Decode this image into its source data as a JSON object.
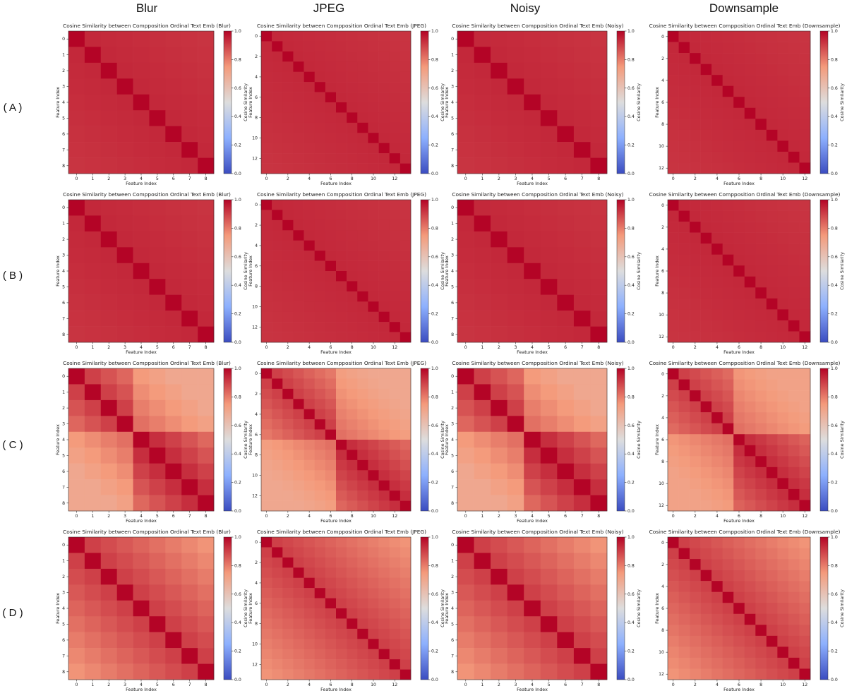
{
  "figure": {
    "column_headers": [
      "Blur",
      "JPEG",
      "Noisy",
      "Downsample"
    ],
    "row_labels": [
      "( A )",
      "( B )",
      "( C )",
      "( D )"
    ]
  },
  "colormap": {
    "name": "coolwarm",
    "low": "#3b4cc0",
    "mid": "#dddddd",
    "high": "#b40426"
  },
  "chart_data": [
    {
      "type": "heatmap",
      "row": "A",
      "column": "Blur",
      "title": "Cosine Similarity between Compposition Ordinal Text Emb (Blur)",
      "xlabel": "Feature Index",
      "ylabel": "Feature Index",
      "colorbar_label": "Cosine Similarity",
      "clim": [
        0,
        1
      ],
      "colorbar_ticks": [
        "0.0",
        "0.2",
        "0.4",
        "0.6",
        "0.8",
        "1.0"
      ],
      "n": 9,
      "x_ticks": [
        "0",
        "1",
        "2",
        "3",
        "4",
        "5",
        "6",
        "7",
        "8"
      ],
      "y_ticks": [
        "0",
        "1",
        "2",
        "3",
        "4",
        "5",
        "6",
        "7",
        "8"
      ],
      "diagonal": 1.0,
      "off_diagonal": {
        "near": 0.94,
        "far": 0.92,
        "decay": "linear"
      }
    },
    {
      "type": "heatmap",
      "row": "A",
      "column": "JPEG",
      "title": "Cosine Similarity between Compposition Ordinal Text Emb (JPEG)",
      "xlabel": "Feature Index",
      "ylabel": "Feature Index",
      "colorbar_label": "Cosine Similarity",
      "clim": [
        0,
        1
      ],
      "colorbar_ticks": [
        "0.0",
        "0.2",
        "0.4",
        "0.6",
        "0.8",
        "1.0"
      ],
      "n": 14,
      "x_ticks": [
        "0",
        "2",
        "4",
        "6",
        "8",
        "10",
        "12"
      ],
      "y_ticks": [
        "0",
        "2",
        "4",
        "6",
        "8",
        "10",
        "12"
      ],
      "diagonal": 1.0,
      "off_diagonal": {
        "near": 0.94,
        "far": 0.92,
        "decay": "linear"
      }
    },
    {
      "type": "heatmap",
      "row": "A",
      "column": "Noisy",
      "title": "Cosine Similarity between Compposition Ordinal Text Emb (Noisy)",
      "xlabel": "Feature Index",
      "ylabel": "Feature Index",
      "colorbar_label": "Cosine Similarity",
      "clim": [
        0,
        1
      ],
      "colorbar_ticks": [
        "0.0",
        "0.2",
        "0.4",
        "0.6",
        "0.8",
        "1.0"
      ],
      "n": 9,
      "x_ticks": [
        "0",
        "1",
        "2",
        "3",
        "4",
        "5",
        "6",
        "7",
        "8"
      ],
      "y_ticks": [
        "0",
        "1",
        "2",
        "3",
        "4",
        "5",
        "6",
        "7",
        "8"
      ],
      "diagonal": 1.0,
      "off_diagonal": {
        "near": 0.94,
        "far": 0.92,
        "decay": "linear"
      }
    },
    {
      "type": "heatmap",
      "row": "A",
      "column": "Downsample",
      "title": "Cosine Similarity between Compposition Ordinal Text Emb (Downsample)",
      "xlabel": "Feature Index",
      "ylabel": "Feature Index",
      "colorbar_label": "Cosine Similarity",
      "clim": [
        0,
        1
      ],
      "colorbar_ticks": [
        "0.0",
        "0.2",
        "0.4",
        "0.6",
        "0.8",
        "1.0"
      ],
      "n": 13,
      "x_ticks": [
        "0",
        "2",
        "4",
        "6",
        "8",
        "10",
        "12"
      ],
      "y_ticks": [
        "0",
        "2",
        "4",
        "6",
        "8",
        "10",
        "12"
      ],
      "diagonal": 1.0,
      "off_diagonal": {
        "near": 0.94,
        "far": 0.92,
        "decay": "linear"
      }
    },
    {
      "type": "heatmap",
      "row": "B",
      "column": "Blur",
      "title": "Cosine Similarity between Compposition Ordinal Text Emb (Blur)",
      "xlabel": "Feature Index",
      "ylabel": "Feature Index",
      "colorbar_label": "Cosine Similarity",
      "clim": [
        0,
        1
      ],
      "colorbar_ticks": [
        "0.0",
        "0.2",
        "0.4",
        "0.6",
        "0.8",
        "1.0"
      ],
      "n": 9,
      "x_ticks": [
        "0",
        "1",
        "2",
        "3",
        "4",
        "5",
        "6",
        "7",
        "8"
      ],
      "y_ticks": [
        "0",
        "1",
        "2",
        "3",
        "4",
        "5",
        "6",
        "7",
        "8"
      ],
      "diagonal": 1.0,
      "off_diagonal": {
        "near": 0.94,
        "far": 0.92,
        "decay": "linear"
      }
    },
    {
      "type": "heatmap",
      "row": "B",
      "column": "JPEG",
      "title": "Cosine Similarity between Compposition Ordinal Text Emb (JPEG)",
      "xlabel": "Feature Index",
      "ylabel": "Feature Index",
      "colorbar_label": "Cosine Similarity",
      "clim": [
        0,
        1
      ],
      "colorbar_ticks": [
        "0.0",
        "0.2",
        "0.4",
        "0.6",
        "0.8",
        "1.0"
      ],
      "n": 14,
      "x_ticks": [
        "0",
        "2",
        "4",
        "6",
        "8",
        "10",
        "12"
      ],
      "y_ticks": [
        "0",
        "2",
        "4",
        "6",
        "8",
        "10",
        "12"
      ],
      "diagonal": 1.0,
      "off_diagonal": {
        "near": 0.94,
        "far": 0.92,
        "decay": "linear"
      }
    },
    {
      "type": "heatmap",
      "row": "B",
      "column": "Noisy",
      "title": "Cosine Similarity between Compposition Ordinal Text Emb (Noisy)",
      "xlabel": "Feature Index",
      "ylabel": "Feature Index",
      "colorbar_label": "Cosine Similarity",
      "clim": [
        0,
        1
      ],
      "colorbar_ticks": [
        "0.0",
        "0.2",
        "0.4",
        "0.6",
        "0.8",
        "1.0"
      ],
      "n": 9,
      "x_ticks": [
        "0",
        "1",
        "2",
        "3",
        "4",
        "5",
        "6",
        "7",
        "8"
      ],
      "y_ticks": [
        "0",
        "1",
        "2",
        "3",
        "4",
        "5",
        "6",
        "7",
        "8"
      ],
      "diagonal": 1.0,
      "off_diagonal": {
        "near": 0.94,
        "far": 0.92,
        "decay": "linear"
      }
    },
    {
      "type": "heatmap",
      "row": "B",
      "column": "Downsample",
      "title": "Cosine Similarity between Compposition Ordinal Text Emb (Downsample)",
      "xlabel": "Feature Index",
      "ylabel": "Feature Index",
      "colorbar_label": "Cosine Similarity",
      "clim": [
        0,
        1
      ],
      "colorbar_ticks": [
        "0.0",
        "0.2",
        "0.4",
        "0.6",
        "0.8",
        "1.0"
      ],
      "n": 13,
      "x_ticks": [
        "0",
        "2",
        "4",
        "6",
        "8",
        "10",
        "12"
      ],
      "y_ticks": [
        "0",
        "2",
        "4",
        "6",
        "8",
        "10",
        "12"
      ],
      "diagonal": 1.0,
      "off_diagonal": {
        "near": 0.94,
        "far": 0.92,
        "decay": "linear"
      }
    },
    {
      "type": "heatmap",
      "row": "C",
      "column": "Blur",
      "title": "Cosine Similarity between Compposition Ordinal Text Emb (Blur)",
      "xlabel": "Feature Index",
      "ylabel": "Feature Index",
      "colorbar_label": "Cosine Similarity",
      "clim": [
        0,
        1
      ],
      "colorbar_ticks": [
        "0.0",
        "0.2",
        "0.4",
        "0.6",
        "0.8",
        "1.0"
      ],
      "n": 9,
      "x_ticks": [
        "0",
        "1",
        "2",
        "3",
        "4",
        "5",
        "6",
        "7",
        "8"
      ],
      "y_ticks": [
        "0",
        "1",
        "2",
        "3",
        "4",
        "5",
        "6",
        "7",
        "8"
      ],
      "diagonal": 1.0,
      "off_diagonal": {
        "near": 0.9,
        "far": 0.7,
        "decay": "block"
      }
    },
    {
      "type": "heatmap",
      "row": "C",
      "column": "JPEG",
      "title": "Cosine Similarity between Compposition Ordinal Text Emb (JPEG)",
      "xlabel": "Feature Index",
      "ylabel": "Feature Index",
      "colorbar_label": "Cosine Similarity",
      "clim": [
        0,
        1
      ],
      "colorbar_ticks": [
        "0.0",
        "0.2",
        "0.4",
        "0.6",
        "0.8",
        "1.0"
      ],
      "n": 14,
      "x_ticks": [
        "0",
        "2",
        "4",
        "6",
        "8",
        "10",
        "12"
      ],
      "y_ticks": [
        "0",
        "2",
        "4",
        "6",
        "8",
        "10",
        "12"
      ],
      "diagonal": 1.0,
      "off_diagonal": {
        "near": 0.9,
        "far": 0.7,
        "decay": "block"
      }
    },
    {
      "type": "heatmap",
      "row": "C",
      "column": "Noisy",
      "title": "Cosine Similarity between Compposition Ordinal Text Emb (Noisy)",
      "xlabel": "Feature Index",
      "ylabel": "Feature Index",
      "colorbar_label": "Cosine Similarity",
      "clim": [
        0,
        1
      ],
      "colorbar_ticks": [
        "0.0",
        "0.2",
        "0.4",
        "0.6",
        "0.8",
        "1.0"
      ],
      "n": 9,
      "x_ticks": [
        "0",
        "1",
        "2",
        "3",
        "4",
        "5",
        "6",
        "7",
        "8"
      ],
      "y_ticks": [
        "0",
        "1",
        "2",
        "3",
        "4",
        "5",
        "6",
        "7",
        "8"
      ],
      "diagonal": 1.0,
      "off_diagonal": {
        "near": 0.9,
        "far": 0.7,
        "decay": "block"
      }
    },
    {
      "type": "heatmap",
      "row": "C",
      "column": "Downsample",
      "title": "Cosine Similarity between Compposition Ordinal Text Emb (Downsample)",
      "xlabel": "Feature Index",
      "ylabel": "Feature Index",
      "colorbar_label": "Cosine Similarity",
      "clim": [
        0,
        1
      ],
      "colorbar_ticks": [
        "0.0",
        "0.2",
        "0.4",
        "0.6",
        "0.8",
        "1.0"
      ],
      "n": 13,
      "x_ticks": [
        "0",
        "2",
        "4",
        "6",
        "8",
        "10",
        "12"
      ],
      "y_ticks": [
        "0",
        "2",
        "4",
        "6",
        "8",
        "10",
        "12"
      ],
      "diagonal": 1.0,
      "off_diagonal": {
        "near": 0.9,
        "far": 0.72,
        "decay": "block"
      }
    },
    {
      "type": "heatmap",
      "row": "D",
      "column": "Blur",
      "title": "Cosine Similarity between Compposition Ordinal Text Emb (Blur)",
      "xlabel": "Feature Index",
      "ylabel": "Feature Index",
      "colorbar_label": "Cosine Similarity",
      "clim": [
        0,
        1
      ],
      "colorbar_ticks": [
        "0.0",
        "0.2",
        "0.4",
        "0.6",
        "0.8",
        "1.0"
      ],
      "n": 9,
      "x_ticks": [
        "0",
        "1",
        "2",
        "3",
        "4",
        "5",
        "6",
        "7",
        "8"
      ],
      "y_ticks": [
        "0",
        "1",
        "2",
        "3",
        "4",
        "5",
        "6",
        "7",
        "8"
      ],
      "diagonal": 1.0,
      "off_diagonal": {
        "near": 0.9,
        "far": 0.76,
        "decay": "linear"
      }
    },
    {
      "type": "heatmap",
      "row": "D",
      "column": "JPEG",
      "title": "Cosine Similarity between Compposition Ordinal Text Emb (JPEG)",
      "xlabel": "Feature Index",
      "ylabel": "Feature Index",
      "colorbar_label": "Cosine Similarity",
      "clim": [
        0,
        1
      ],
      "colorbar_ticks": [
        "0.0",
        "0.2",
        "0.4",
        "0.6",
        "0.8",
        "1.0"
      ],
      "n": 14,
      "x_ticks": [
        "0",
        "2",
        "4",
        "6",
        "8",
        "10",
        "12"
      ],
      "y_ticks": [
        "0",
        "2",
        "4",
        "6",
        "8",
        "10",
        "12"
      ],
      "diagonal": 1.0,
      "off_diagonal": {
        "near": 0.9,
        "far": 0.76,
        "decay": "linear"
      }
    },
    {
      "type": "heatmap",
      "row": "D",
      "column": "Noisy",
      "title": "Cosine Similarity between Compposition Ordinal Text Emb (Noisy)",
      "xlabel": "Feature Index",
      "ylabel": "Feature Index",
      "colorbar_label": "Cosine Similarity",
      "clim": [
        0,
        1
      ],
      "colorbar_ticks": [
        "0.0",
        "0.2",
        "0.4",
        "0.6",
        "0.8",
        "1.0"
      ],
      "n": 9,
      "x_ticks": [
        "0",
        "1",
        "2",
        "3",
        "4",
        "5",
        "6",
        "7",
        "8"
      ],
      "y_ticks": [
        "0",
        "1",
        "2",
        "3",
        "4",
        "5",
        "6",
        "7",
        "8"
      ],
      "diagonal": 1.0,
      "off_diagonal": {
        "near": 0.9,
        "far": 0.76,
        "decay": "linear"
      }
    },
    {
      "type": "heatmap",
      "row": "D",
      "column": "Downsample",
      "title": "Cosine Similarity between Compposition Ordinal Text Emb (Downsample)",
      "xlabel": "Feature Index",
      "ylabel": "Feature Index",
      "colorbar_label": "Cosine Similarity",
      "clim": [
        0,
        1
      ],
      "colorbar_ticks": [
        "0.0",
        "0.2",
        "0.4",
        "0.6",
        "0.8",
        "1.0"
      ],
      "n": 13,
      "x_ticks": [
        "0",
        "2",
        "4",
        "6",
        "8",
        "10",
        "12"
      ],
      "y_ticks": [
        "0",
        "2",
        "4",
        "6",
        "8",
        "10",
        "12"
      ],
      "diagonal": 1.0,
      "off_diagonal": {
        "near": 0.9,
        "far": 0.76,
        "decay": "linear"
      }
    }
  ]
}
